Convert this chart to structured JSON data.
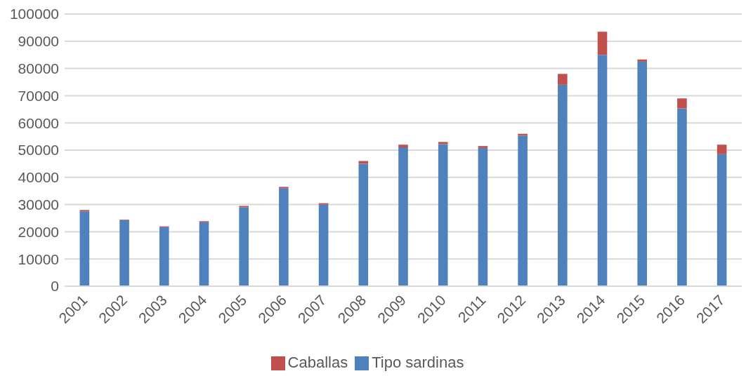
{
  "chart_data": {
    "type": "bar",
    "stacked": true,
    "categories": [
      "2001",
      "2002",
      "2003",
      "2004",
      "2005",
      "2006",
      "2007",
      "2008",
      "2009",
      "2010",
      "2011",
      "2012",
      "2013",
      "2014",
      "2015",
      "2016",
      "2017"
    ],
    "series": [
      {
        "name": "Tipo sardinas",
        "color": "#4f81bd",
        "values": [
          27500,
          24300,
          21700,
          23500,
          29000,
          36000,
          30000,
          45000,
          51000,
          52200,
          50800,
          55300,
          74000,
          85000,
          82500,
          65300,
          48500
        ]
      },
      {
        "name": "Caballas",
        "color": "#c0504d",
        "values": [
          500,
          200,
          300,
          400,
          500,
          500,
          500,
          1000,
          1000,
          800,
          700,
          700,
          4000,
          8500,
          800,
          3700,
          3500
        ]
      }
    ],
    "ylim": [
      0,
      100000
    ],
    "yticks": [
      0,
      10000,
      20000,
      30000,
      40000,
      50000,
      60000,
      70000,
      80000,
      90000,
      100000
    ],
    "grid": "y",
    "legend": "bottom"
  }
}
